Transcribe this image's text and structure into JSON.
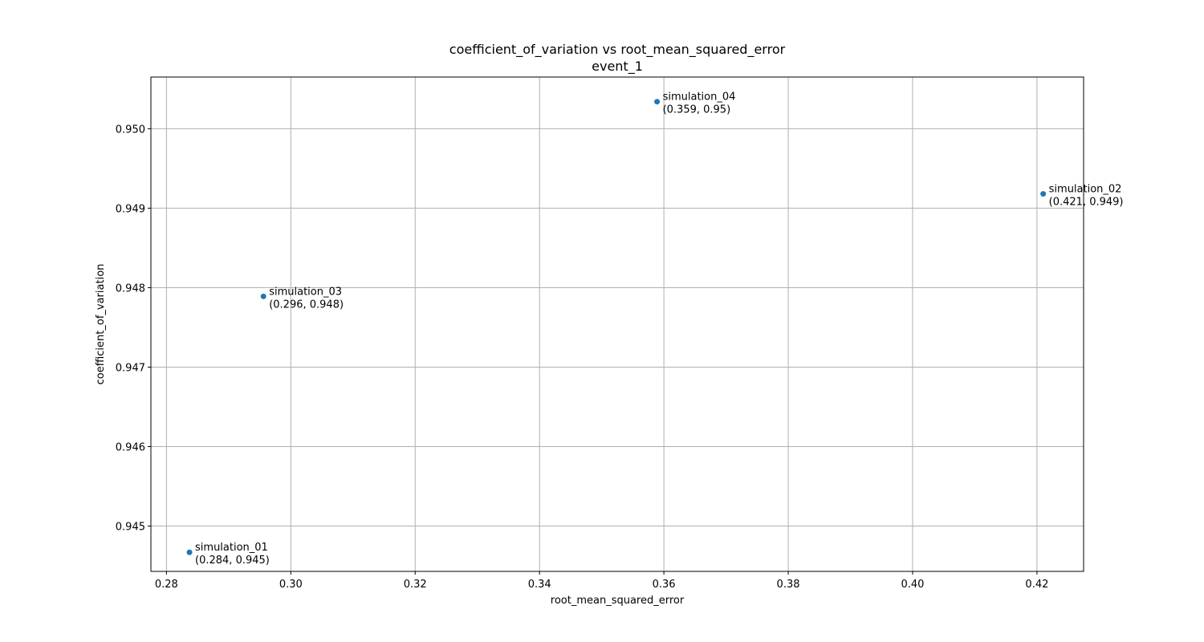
{
  "chart_data": {
    "type": "scatter",
    "title": "coefficient_of_variation vs root_mean_squared_error",
    "subtitle": "event_1",
    "xlabel": "root_mean_squared_error",
    "ylabel": "coefficient_of_variation",
    "xlim": [
      0.2775,
      0.4275
    ],
    "ylim": [
      0.94443,
      0.95065
    ],
    "xticks": [
      0.28,
      0.3,
      0.32,
      0.34,
      0.36,
      0.38,
      0.4,
      0.42
    ],
    "xtick_labels": [
      "0.28",
      "0.30",
      "0.32",
      "0.34",
      "0.36",
      "0.38",
      "0.40",
      "0.42"
    ],
    "yticks": [
      0.945,
      0.946,
      0.947,
      0.948,
      0.949,
      0.95
    ],
    "ytick_labels": [
      "0.945",
      "0.946",
      "0.947",
      "0.948",
      "0.949",
      "0.950"
    ],
    "grid": true,
    "marker_color": "#1f77b4",
    "points": [
      {
        "name": "simulation_01",
        "x": 0.2837,
        "y": 0.94467,
        "coord_label": "(0.284, 0.945)"
      },
      {
        "name": "simulation_03",
        "x": 0.2956,
        "y": 0.94789,
        "coord_label": "(0.296, 0.948)"
      },
      {
        "name": "simulation_04",
        "x": 0.3589,
        "y": 0.95034,
        "coord_label": "(0.359, 0.95)"
      },
      {
        "name": "simulation_02",
        "x": 0.421,
        "y": 0.94918,
        "coord_label": "(0.421, 0.949)"
      }
    ]
  }
}
